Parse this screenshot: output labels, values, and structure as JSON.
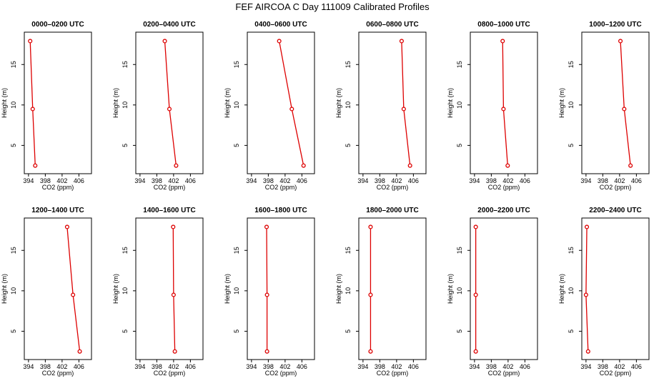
{
  "title": "FEF AIRCOA C  Day 111009  Calibrated Profiles",
  "chart_data": {
    "type": "scatter",
    "xlabel": "CO2 (ppm)",
    "ylabel": "Height (m)",
    "xlim": [
      393,
      409
    ],
    "ylim": [
      1.5,
      19
    ],
    "xticks": [
      394,
      398,
      402,
      406
    ],
    "yticks": [
      5,
      10,
      15
    ],
    "heights": [
      17.9,
      9.5,
      2.5
    ],
    "series_color": "#dd0000",
    "panels": [
      {
        "label": "0000–0200 UTC",
        "co2": [
          394.4,
          395.0,
          395.6
        ]
      },
      {
        "label": "0200–0400 UTC",
        "co2": [
          399.9,
          401.0,
          402.6
        ]
      },
      {
        "label": "0400–0600 UTC",
        "co2": [
          400.6,
          403.6,
          406.4
        ]
      },
      {
        "label": "0600–0800 UTC",
        "co2": [
          403.2,
          403.7,
          405.2
        ]
      },
      {
        "label": "0800–1000 UTC",
        "co2": [
          400.7,
          400.9,
          401.9
        ]
      },
      {
        "label": "1000–1200 UTC",
        "co2": [
          402.2,
          403.1,
          404.6
        ]
      },
      {
        "label": "1200–1400 UTC",
        "co2": [
          403.2,
          404.6,
          406.2
        ]
      },
      {
        "label": "1400–1600 UTC",
        "co2": [
          401.9,
          402.0,
          402.3
        ]
      },
      {
        "label": "1600–1800 UTC",
        "co2": [
          397.6,
          397.7,
          397.7
        ]
      },
      {
        "label": "1800–2000 UTC",
        "co2": [
          395.8,
          395.8,
          395.8
        ]
      },
      {
        "label": "2000–2200 UTC",
        "co2": [
          394.3,
          394.3,
          394.3
        ]
      },
      {
        "label": "2200–2400 UTC",
        "co2": [
          394.2,
          394.0,
          394.5
        ]
      }
    ]
  }
}
